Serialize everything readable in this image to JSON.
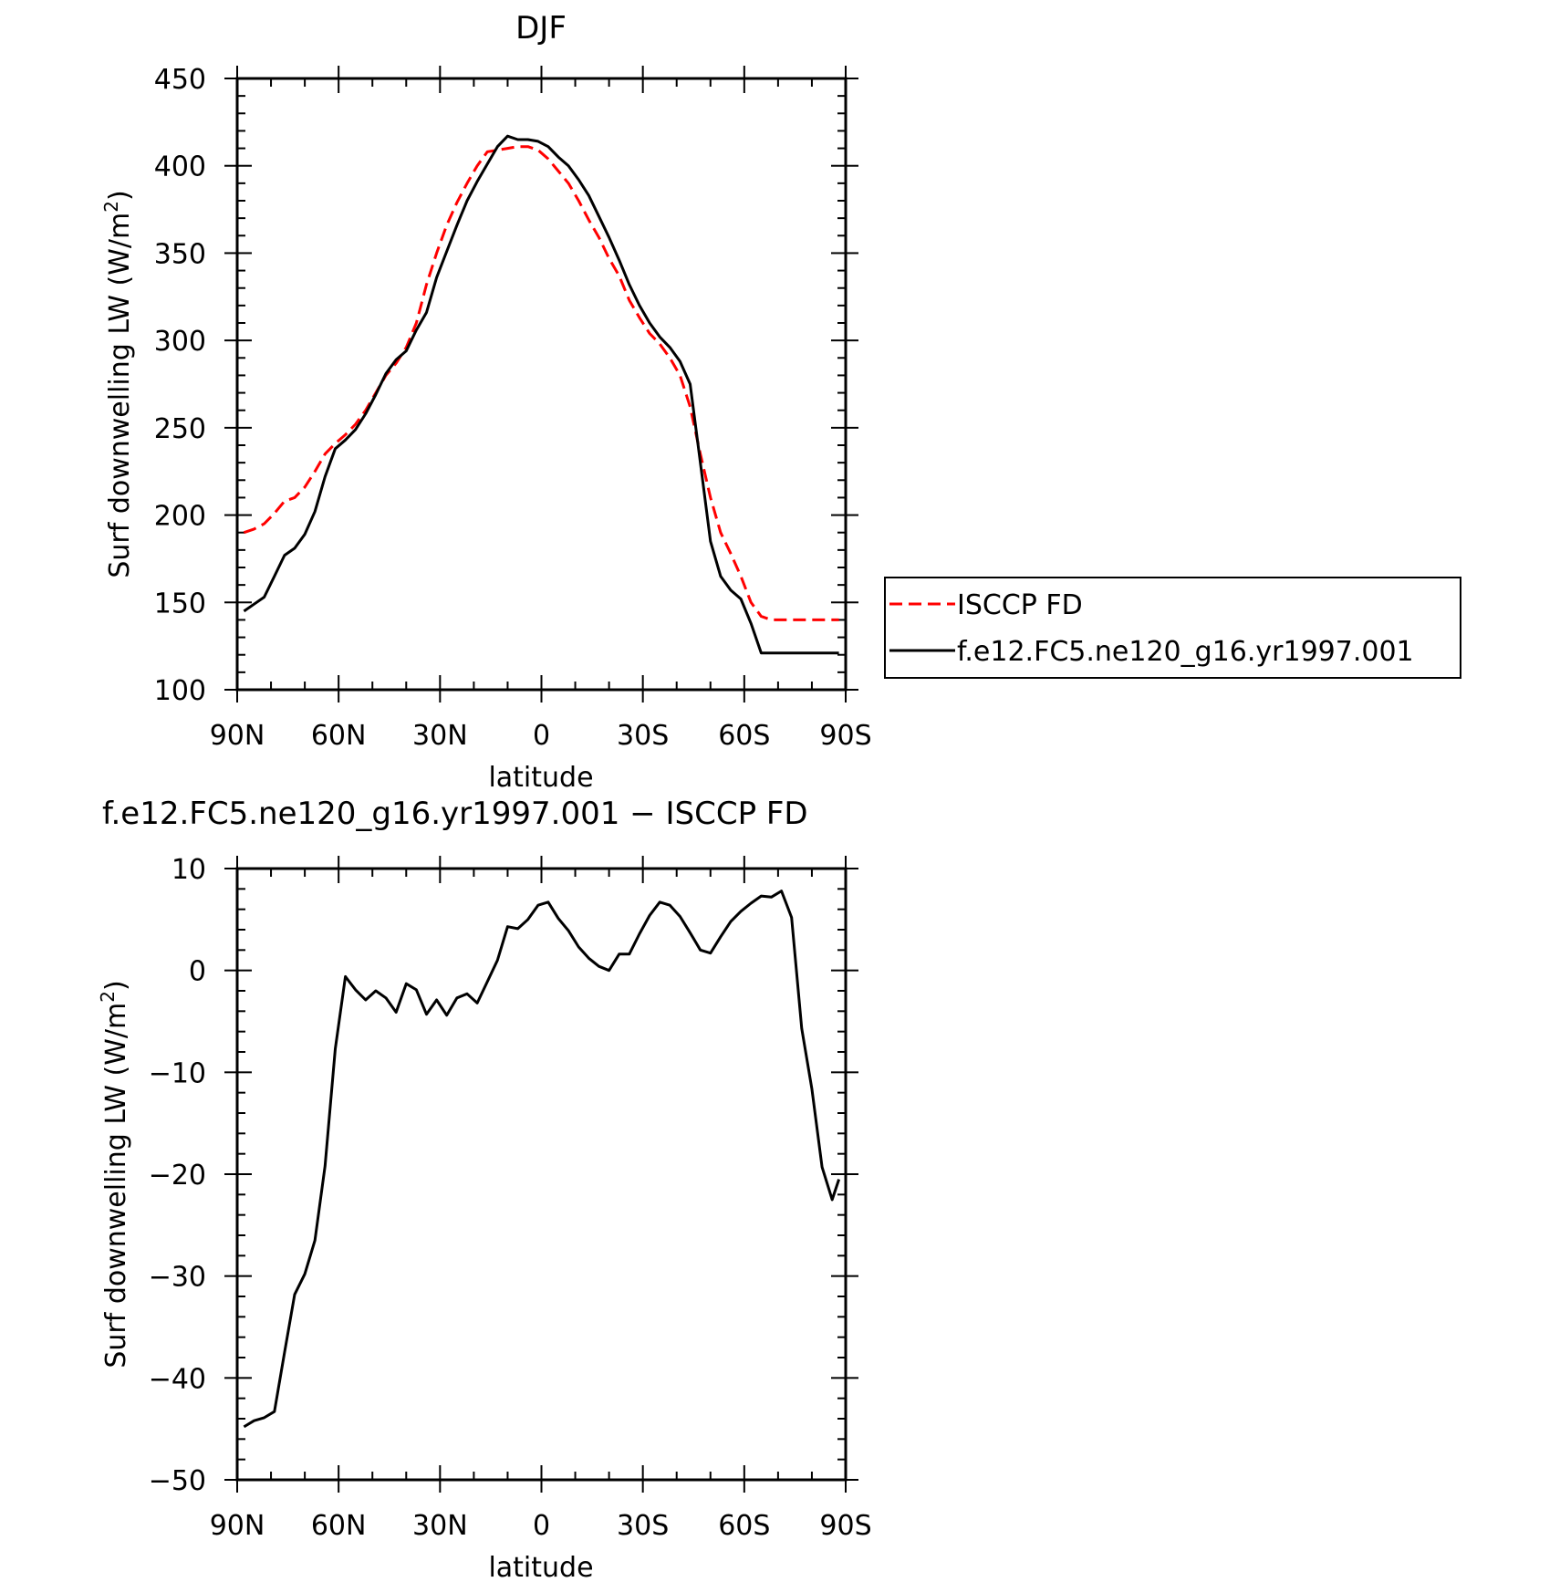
{
  "chart_data": [
    {
      "type": "line",
      "title": "DJF",
      "xlabel": "latitude",
      "ylabel": "Surf downwelling LW (W/m²)",
      "ylabel_parts": {
        "main": "Surf downwelling LW (W/m",
        "sup": "2",
        "close": ")"
      },
      "xlim": [
        90,
        -90
      ],
      "ylim": [
        100,
        450
      ],
      "xticks": [
        {
          "value": 90,
          "label": "90N"
        },
        {
          "value": 60,
          "label": "60N"
        },
        {
          "value": 30,
          "label": "30N"
        },
        {
          "value": 0,
          "label": "0"
        },
        {
          "value": -30,
          "label": "30S"
        },
        {
          "value": -60,
          "label": "60S"
        },
        {
          "value": -90,
          "label": "90S"
        }
      ],
      "yticks": [
        {
          "value": 100,
          "label": "100"
        },
        {
          "value": 150,
          "label": "150"
        },
        {
          "value": 200,
          "label": "200"
        },
        {
          "value": 250,
          "label": "250"
        },
        {
          "value": 300,
          "label": "300"
        },
        {
          "value": 350,
          "label": "350"
        },
        {
          "value": 400,
          "label": "400"
        },
        {
          "value": 450,
          "label": "450"
        }
      ],
      "legend_position": "right",
      "series": [
        {
          "name": "ISCCP FD",
          "color": "#ff0000",
          "style": "dashed",
          "x": [
            88,
            85,
            82,
            79,
            76,
            73,
            70,
            67,
            64,
            61,
            58,
            55,
            52,
            49,
            46,
            43,
            40,
            37,
            34,
            31,
            28,
            25,
            22,
            19,
            16,
            13,
            10,
            7,
            4,
            1,
            -2,
            -5,
            -8,
            -11,
            -14,
            -17,
            -20,
            -23,
            -26,
            -29,
            -32,
            -35,
            -38,
            -41,
            -44,
            -47,
            -50,
            -53,
            -56,
            -59,
            -62,
            -65,
            -68,
            -71,
            -74,
            -77,
            -80,
            -83,
            -86,
            -88
          ],
          "y": [
            190,
            192,
            195,
            201,
            208,
            210,
            216,
            225,
            235,
            241,
            246,
            252,
            260,
            270,
            280,
            287,
            296,
            310,
            332,
            350,
            366,
            379,
            390,
            400,
            408,
            409,
            410,
            411,
            411,
            409,
            404,
            397,
            390,
            380,
            369,
            359,
            347,
            337,
            323,
            313,
            304,
            298,
            290,
            280,
            262,
            235,
            210,
            190,
            178,
            165,
            150,
            142,
            140,
            140,
            140,
            140,
            140,
            140,
            140,
            140
          ]
        },
        {
          "name": "f.e12.FC5.ne120_g16.yr1997.001",
          "color": "#000000",
          "style": "solid",
          "x": [
            88,
            85,
            82,
            79,
            76,
            73,
            70,
            67,
            64,
            61,
            58,
            55,
            52,
            49,
            46,
            43,
            40,
            37,
            34,
            31,
            28,
            25,
            22,
            19,
            16,
            13,
            10,
            7,
            4,
            1,
            -2,
            -5,
            -8,
            -11,
            -14,
            -17,
            -20,
            -23,
            -26,
            -29,
            -32,
            -35,
            -38,
            -41,
            -44,
            -47,
            -50,
            -53,
            -56,
            -59,
            -62,
            -65,
            -68,
            -71,
            -74,
            -77,
            -80,
            -83,
            -86,
            -88
          ],
          "y": [
            145,
            149,
            153,
            165,
            177,
            181,
            189,
            202,
            222,
            238,
            243,
            249,
            258,
            269,
            281,
            289,
            294,
            306,
            316,
            336,
            351,
            366,
            380,
            391,
            401,
            411,
            417,
            415,
            415,
            414,
            411,
            405,
            400,
            392,
            383,
            371,
            359,
            346,
            332,
            320,
            310,
            302,
            296,
            288,
            275,
            230,
            185,
            165,
            157,
            152,
            138,
            121,
            121,
            121,
            121,
            121,
            121,
            121,
            121,
            121
          ]
        }
      ]
    },
    {
      "type": "line",
      "title": "f.e12.FC5.ne120_g16.yr1997.001 − ISCCP FD",
      "xlabel": "latitude",
      "ylabel": "Surf downwelling LW (W/m²)",
      "ylabel_parts": {
        "main": "Surf downwelling LW (W/m",
        "sup": "2",
        "close": ")"
      },
      "xlim": [
        90,
        -90
      ],
      "ylim": [
        -50,
        10
      ],
      "xticks": [
        {
          "value": 90,
          "label": "90N"
        },
        {
          "value": 60,
          "label": "60N"
        },
        {
          "value": 30,
          "label": "30N"
        },
        {
          "value": 0,
          "label": "0"
        },
        {
          "value": -30,
          "label": "30S"
        },
        {
          "value": -60,
          "label": "60S"
        },
        {
          "value": -90,
          "label": "90S"
        }
      ],
      "yticks": [
        {
          "value": 10,
          "label": "10"
        },
        {
          "value": 0,
          "label": "0"
        },
        {
          "value": -10,
          "label": "−10"
        },
        {
          "value": -20,
          "label": "−20"
        },
        {
          "value": -30,
          "label": "−30"
        },
        {
          "value": -40,
          "label": "−40"
        },
        {
          "value": -50,
          "label": "−50"
        }
      ],
      "series": [
        {
          "color": "#000000",
          "style": "solid",
          "x": [
            88,
            85,
            82,
            79,
            76,
            73,
            70,
            67,
            64,
            61,
            58,
            55,
            52,
            49,
            46,
            43,
            40,
            37,
            34,
            31,
            28,
            25,
            22,
            19,
            16,
            13,
            10,
            7,
            4,
            1,
            -2,
            -5,
            -8,
            -11,
            -14,
            -17,
            -20,
            -23,
            -26,
            -29,
            -32,
            -35,
            -38,
            -41,
            -44,
            -47,
            -50,
            -53,
            -56,
            -59,
            -62,
            -65,
            -68,
            -71,
            -74,
            -77,
            -80,
            -83,
            -86,
            -88
          ],
          "y": [
            -44.8,
            -44.2,
            -43.9,
            -43.3,
            -37.5,
            -31.8,
            -29.8,
            -26.5,
            -19.2,
            -7.7,
            -0.6,
            -1.9,
            -2.9,
            -2.0,
            -2.7,
            -4.1,
            -1.3,
            -1.9,
            -4.3,
            -2.9,
            -4.4,
            -2.7,
            -2.3,
            -3.2,
            -1.1,
            1.0,
            4.3,
            4.1,
            5.0,
            6.4,
            6.7,
            5.1,
            3.9,
            2.3,
            1.2,
            0.4,
            0.0,
            1.6,
            1.6,
            3.6,
            5.4,
            6.7,
            6.4,
            5.3,
            3.7,
            2.0,
            1.7,
            3.3,
            4.8,
            5.8,
            6.6,
            7.3,
            7.2,
            7.8,
            5.2,
            -5.7,
            -11.6,
            -19.3,
            -22.5,
            -20.5
          ]
        }
      ]
    }
  ]
}
